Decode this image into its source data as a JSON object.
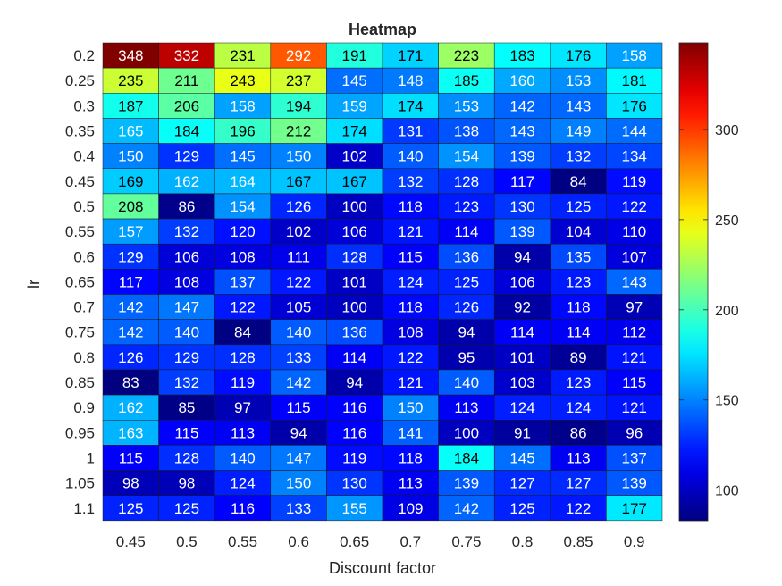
{
  "chart_data": {
    "type": "heatmap",
    "title": "Heatmap",
    "xlabel": "Discount factor",
    "ylabel": "lr",
    "x_categories": [
      "0.45",
      "0.5",
      "0.55",
      "0.6",
      "0.65",
      "0.7",
      "0.75",
      "0.8",
      "0.85",
      "0.9"
    ],
    "y_categories": [
      "0.2",
      "0.25",
      "0.3",
      "0.35",
      "0.4",
      "0.45",
      "0.5",
      "0.55",
      "0.6",
      "0.65",
      "0.7",
      "0.75",
      "0.8",
      "0.85",
      "0.9",
      "0.95",
      "1",
      "1.05",
      "1.1"
    ],
    "values": [
      [
        348,
        332,
        231,
        292,
        191,
        171,
        223,
        183,
        176,
        158
      ],
      [
        235,
        211,
        243,
        237,
        145,
        148,
        185,
        160,
        153,
        181
      ],
      [
        187,
        206,
        158,
        194,
        159,
        174,
        153,
        142,
        143,
        176
      ],
      [
        165,
        184,
        196,
        212,
        174,
        131,
        138,
        143,
        149,
        144
      ],
      [
        150,
        129,
        145,
        150,
        102,
        140,
        154,
        139,
        132,
        134
      ],
      [
        169,
        162,
        164,
        167,
        167,
        132,
        128,
        117,
        84,
        119
      ],
      [
        208,
        86,
        154,
        126,
        100,
        118,
        123,
        130,
        125,
        122
      ],
      [
        157,
        132,
        120,
        102,
        106,
        121,
        114,
        139,
        104,
        110
      ],
      [
        129,
        106,
        108,
        111,
        128,
        115,
        136,
        94,
        135,
        107
      ],
      [
        117,
        108,
        137,
        122,
        101,
        124,
        125,
        106,
        123,
        143
      ],
      [
        142,
        147,
        122,
        105,
        100,
        118,
        126,
        92,
        118,
        97
      ],
      [
        142,
        140,
        84,
        140,
        136,
        108,
        94,
        114,
        114,
        112
      ],
      [
        126,
        129,
        128,
        133,
        114,
        122,
        95,
        101,
        89,
        121
      ],
      [
        83,
        132,
        119,
        142,
        94,
        121,
        140,
        103,
        123,
        115
      ],
      [
        162,
        85,
        97,
        115,
        116,
        150,
        113,
        124,
        124,
        121
      ],
      [
        163,
        115,
        113,
        94,
        116,
        141,
        100,
        91,
        86,
        96
      ],
      [
        115,
        128,
        140,
        147,
        119,
        118,
        184,
        145,
        113,
        137
      ],
      [
        98,
        98,
        124,
        150,
        130,
        113,
        139,
        127,
        127,
        139
      ],
      [
        125,
        125,
        116,
        133,
        155,
        109,
        142,
        125,
        122,
        177
      ]
    ],
    "colormap": "jet",
    "clim": [
      83,
      348
    ],
    "colorbar_ticks": [
      "100",
      "150",
      "200",
      "250",
      "300"
    ],
    "colorbar_tick_values": [
      100,
      150,
      200,
      250,
      300
    ],
    "colorbar_position": "right"
  }
}
